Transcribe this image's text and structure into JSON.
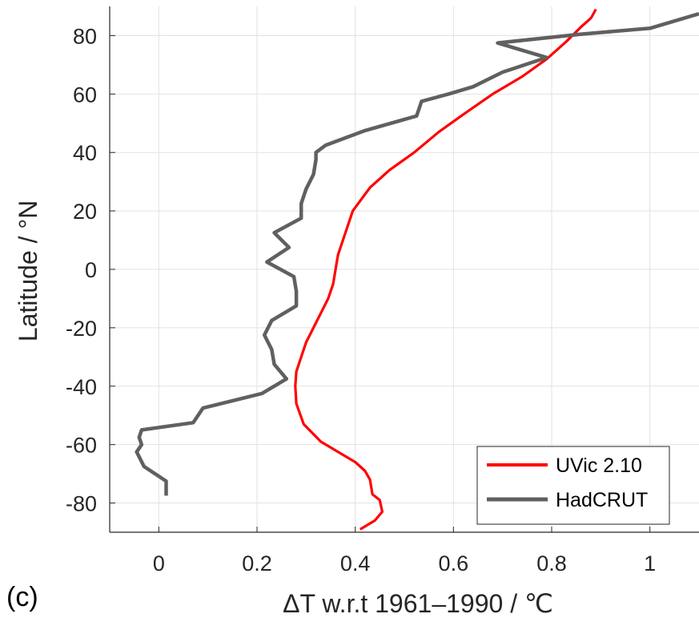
{
  "panel_label": "(c)",
  "chart_data": {
    "type": "line",
    "title": "",
    "xlabel": "ΔT  w.r.t 1961–1990 / ℃",
    "ylabel": "Latitude / °N",
    "xlim": [
      -0.1,
      1.1
    ],
    "ylim": [
      -90,
      90
    ],
    "xticks": [
      0,
      0.2,
      0.4,
      0.6,
      0.8,
      1
    ],
    "xtick_labels": [
      "0",
      "0.2",
      "0.4",
      "0.6",
      "0.8",
      "1"
    ],
    "yticks": [
      80,
      60,
      40,
      20,
      0,
      -20,
      -40,
      -60,
      -80
    ],
    "ytick_labels": [
      "80",
      "60",
      "40",
      "20",
      "0",
      "-20",
      "-40",
      "-60",
      "-80"
    ],
    "grid": true,
    "legend_position": "bottom-right",
    "series": [
      {
        "name": "UVic 2.10",
        "color": "#ff0000",
        "x": [
          0.41,
          0.44,
          0.455,
          0.45,
          0.435,
          0.43,
          0.42,
          0.4,
          0.37,
          0.33,
          0.295,
          0.28,
          0.278,
          0.28,
          0.29,
          0.3,
          0.315,
          0.33,
          0.345,
          0.355,
          0.36,
          0.365,
          0.375,
          0.395,
          0.43,
          0.47,
          0.52,
          0.57,
          0.62,
          0.68,
          0.74,
          0.79,
          0.83,
          0.86,
          0.88,
          0.89
        ],
        "y": [
          -89,
          -86,
          -83,
          -79,
          -77,
          -72,
          -69,
          -66,
          -63,
          -59,
          -53,
          -46,
          -40,
          -35,
          -30,
          -25,
          -20,
          -15,
          -10,
          -5,
          0,
          5,
          10,
          20,
          28,
          34,
          40,
          47,
          53,
          60,
          66,
          72,
          78,
          83,
          86,
          89
        ]
      },
      {
        "name": "HadCRUT",
        "color": "#606060",
        "x": [
          0.015,
          0.015,
          -0.03,
          -0.045,
          -0.035,
          -0.04,
          -0.035,
          0.07,
          0.09,
          0.21,
          0.26,
          0.235,
          0.23,
          0.215,
          0.23,
          0.28,
          0.28,
          0.275,
          0.22,
          0.265,
          0.235,
          0.29,
          0.29,
          0.3,
          0.315,
          0.32,
          0.32,
          0.34,
          0.42,
          0.525,
          0.535,
          0.59,
          0.64,
          0.7,
          0.79,
          0.69,
          0.86,
          1.0,
          1.1
        ],
        "y": [
          -77.5,
          -72.5,
          -67.5,
          -62.5,
          -60,
          -57.5,
          -55,
          -52.5,
          -47.5,
          -42.5,
          -37.5,
          -32.5,
          -27.5,
          -22.5,
          -17.5,
          -12.5,
          -7.5,
          -2.5,
          2.5,
          7.5,
          12.5,
          17.5,
          22.5,
          27.5,
          32.5,
          37.5,
          40,
          42.5,
          47.5,
          52.5,
          57.5,
          60,
          62.5,
          67.5,
          72.5,
          77.5,
          80.5,
          82.5,
          87.5
        ]
      }
    ]
  }
}
